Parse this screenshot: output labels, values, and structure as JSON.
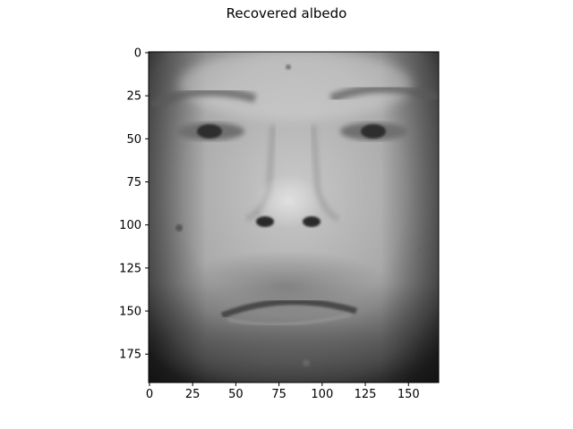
{
  "figure": {
    "title": "Recovered albedo"
  },
  "image": {
    "description_name": "grayscale face albedo map",
    "width_units": 168,
    "height_units": 192
  },
  "x_axis": {
    "ticks": [
      0,
      25,
      50,
      75,
      100,
      125,
      150
    ],
    "tick_labels": [
      "0",
      "25",
      "50",
      "75",
      "100",
      "125",
      "150"
    ],
    "range": [
      -0.5,
      167.5
    ]
  },
  "y_axis": {
    "ticks": [
      0,
      25,
      50,
      75,
      100,
      125,
      150,
      175
    ],
    "tick_labels": [
      "0",
      "25",
      "50",
      "75",
      "100",
      "125",
      "150",
      "175"
    ],
    "range": [
      -0.5,
      191.5
    ]
  },
  "colors": {
    "axis": "#000000",
    "background": "#ffffff"
  }
}
